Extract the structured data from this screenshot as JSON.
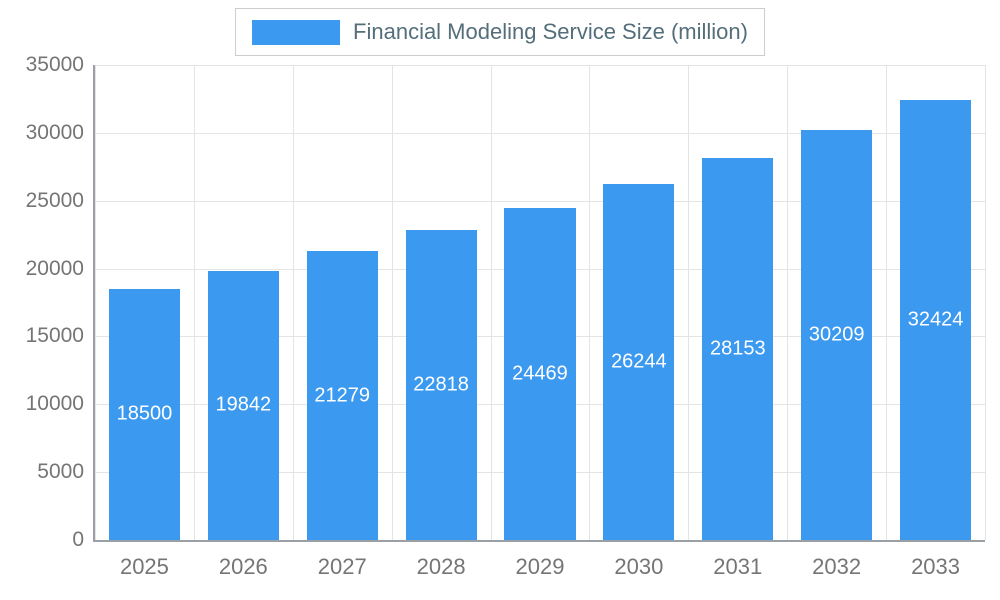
{
  "legend": {
    "label": "Financial Modeling Service Size (million)"
  },
  "colors": {
    "bar": "#3b99f0",
    "grid": "#e4e4e4",
    "axis": "#9aa0a6",
    "tick_text": "#757575",
    "value_label_text": "#ffffff",
    "legend_text": "#546e7a",
    "background": "#ffffff"
  },
  "chart_data": {
    "type": "bar",
    "title": "Financial Modeling Service Size (million)",
    "categories": [
      "2025",
      "2026",
      "2027",
      "2028",
      "2029",
      "2030",
      "2031",
      "2032",
      "2033"
    ],
    "values": [
      18500,
      19842,
      21279,
      22818,
      24469,
      26244,
      28153,
      30209,
      32424
    ],
    "series": [
      {
        "name": "Financial Modeling Service Size (million)",
        "values": [
          18500,
          19842,
          21279,
          22818,
          24469,
          26244,
          28153,
          30209,
          32424
        ]
      }
    ],
    "xlabel": "",
    "ylabel": "",
    "ylim": [
      0,
      35000
    ],
    "yticks": [
      0,
      5000,
      10000,
      15000,
      20000,
      25000,
      30000,
      35000
    ],
    "grid": true,
    "legend_position": "top-center",
    "value_label_position": "inside-center"
  }
}
